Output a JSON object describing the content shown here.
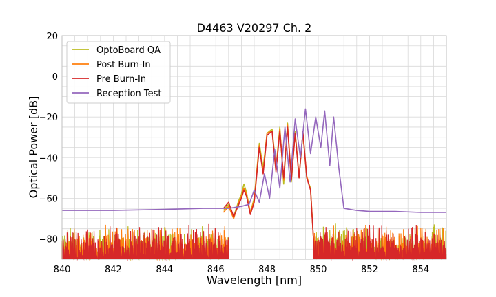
{
  "chart_data": {
    "type": "line",
    "title": "D4463 V20297 Ch. 2",
    "xlabel": "Wavelength [nm]",
    "ylabel": "Optical Power [dB]",
    "xlim": [
      840,
      855
    ],
    "ylim": [
      -90,
      20
    ],
    "xticks": [
      840,
      842,
      844,
      846,
      848,
      850,
      852,
      854
    ],
    "yticks": [
      -80,
      -60,
      -40,
      -20,
      0,
      20
    ],
    "grid": true,
    "legend_position": "upper-left",
    "series": [
      {
        "name": "OptoBoard QA",
        "color": "#bcbd22",
        "noise_floor": {
          "from": 840,
          "to": 846.5,
          "low": -90,
          "high": -72,
          "band2_from": 849.8,
          "band2_to": 855
        },
        "x": [
          846.3,
          846.5,
          846.7,
          846.9,
          847.0,
          847.1,
          847.2,
          847.35,
          847.5,
          847.7,
          847.85,
          848.0,
          848.2,
          848.35,
          848.5,
          848.65,
          848.8,
          848.95,
          849.1,
          849.25,
          849.4,
          849.55,
          849.7,
          849.85
        ],
        "values": [
          -66,
          -63,
          -69,
          -61,
          -58,
          -53,
          -57,
          -67,
          -60,
          -33,
          -45,
          -28,
          -26,
          -45,
          -25,
          -53,
          -23,
          -52,
          -27,
          -50,
          -28,
          -50,
          -55,
          -88
        ]
      },
      {
        "name": "Post Burn-In",
        "color": "#ff7f0e",
        "noise_floor": {
          "from": 840,
          "to": 846.5,
          "low": -90,
          "high": -72,
          "band2_from": 849.8,
          "band2_to": 855
        },
        "x": [
          846.3,
          846.5,
          846.7,
          846.9,
          847.0,
          847.1,
          847.2,
          847.35,
          847.5,
          847.7,
          847.85,
          848.0,
          848.2,
          848.35,
          848.5,
          848.65,
          848.8,
          848.95,
          849.1,
          849.25,
          849.4,
          849.55,
          849.7,
          849.85
        ],
        "values": [
          -67,
          -64,
          -70,
          -62,
          -59,
          -55,
          -58,
          -67,
          -61,
          -34,
          -47,
          -28,
          -27,
          -46,
          -26,
          -51,
          -24,
          -50,
          -28,
          -49,
          -28,
          -49,
          -56,
          -88
        ]
      },
      {
        "name": "Pre Burn-In",
        "color": "#d62728",
        "noise_floor": {
          "from": 840,
          "to": 846.5,
          "low": -90,
          "high": -72,
          "band2_from": 849.8,
          "band2_to": 855
        },
        "x": [
          846.3,
          846.5,
          846.7,
          846.9,
          847.0,
          847.1,
          847.2,
          847.35,
          847.5,
          847.7,
          847.85,
          848.0,
          848.2,
          848.35,
          848.5,
          848.65,
          848.8,
          848.95,
          849.1,
          849.25,
          849.4,
          849.55,
          849.7,
          849.85
        ],
        "values": [
          -65,
          -62,
          -69,
          -63,
          -60,
          -56,
          -59,
          -68,
          -62,
          -35,
          -48,
          -29,
          -27,
          -47,
          -27,
          -50,
          -25,
          -51,
          -28,
          -50,
          -27,
          -50,
          -56,
          -88
        ]
      },
      {
        "name": "Reception Test",
        "color": "#9467bd",
        "x": [
          840,
          842,
          844,
          845.5,
          846.5,
          847.0,
          847.3,
          847.5,
          847.7,
          847.9,
          848.1,
          848.3,
          848.5,
          848.7,
          848.9,
          849.1,
          849.3,
          849.5,
          849.7,
          849.9,
          850.1,
          850.25,
          850.45,
          850.6,
          850.8,
          851.0,
          851.5,
          852,
          853,
          854,
          855
        ],
        "values": [
          -66,
          -66,
          -65.5,
          -65,
          -65,
          -64,
          -63,
          -56,
          -62,
          -48,
          -60,
          -36,
          -55,
          -25,
          -52,
          -21,
          -40,
          -16,
          -38,
          -20,
          -35,
          -17,
          -44,
          -20,
          -45,
          -65,
          -66,
          -66.5,
          -66.5,
          -67,
          -67
        ]
      }
    ]
  }
}
